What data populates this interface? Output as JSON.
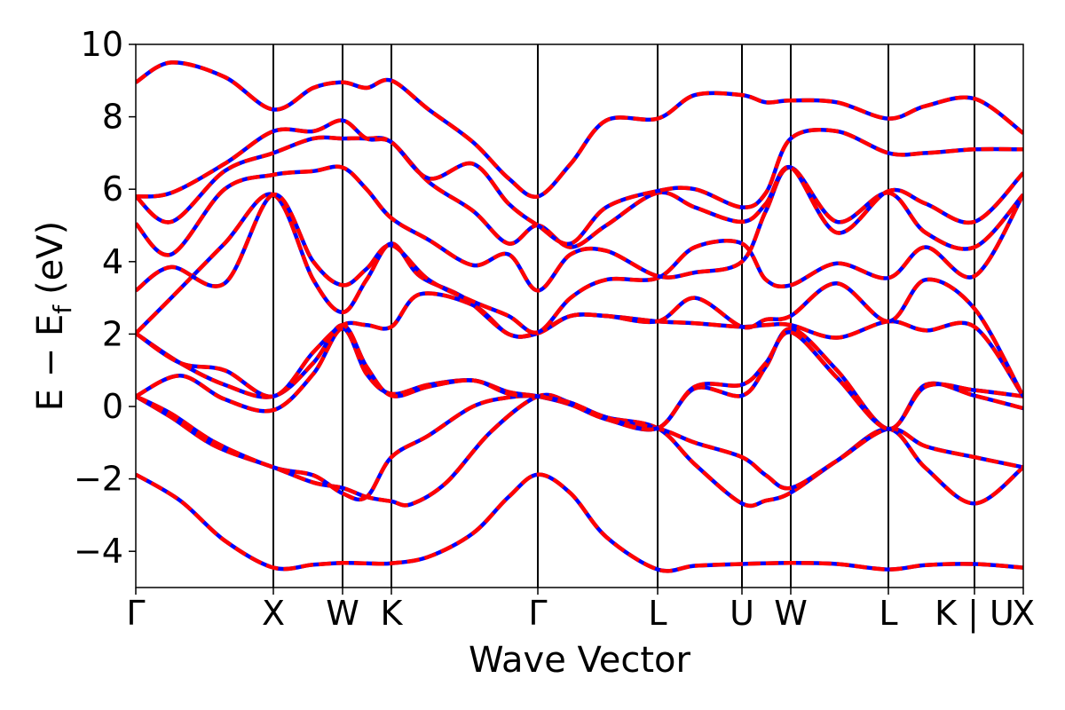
{
  "chart_data": {
    "type": "line",
    "title": "",
    "xlabel": "Wave Vector",
    "ylabel": "E − E_f (eV)",
    "ylabel_main": "E − E",
    "ylabel_sub": "f",
    "ylabel_unit": "(eV)",
    "ylim": [
      -5,
      10
    ],
    "yticks": [
      -4,
      -2,
      0,
      2,
      4,
      6,
      8,
      10
    ],
    "ytick_labels": [
      "−4",
      "−2",
      "0",
      "2",
      "4",
      "6",
      "8",
      "10"
    ],
    "xlim": [
      0,
      10
    ],
    "kpoints": [
      {
        "label": "Γ",
        "x": 0.0
      },
      {
        "label": "X",
        "x": 1.55
      },
      {
        "label": "W",
        "x": 2.33
      },
      {
        "label": "K",
        "x": 2.88
      },
      {
        "label": "Γ",
        "x": 4.53
      },
      {
        "label": "L",
        "x": 5.88
      },
      {
        "label": "U",
        "x": 6.83
      },
      {
        "label": "W",
        "x": 7.38
      },
      {
        "label": "L",
        "x": 8.48
      },
      {
        "label": "K | U",
        "x": 9.45
      },
      {
        "label": "X",
        "x": 10.0
      }
    ],
    "grid": false,
    "legend": "none",
    "series_style": [
      {
        "color": "#0000ff",
        "dash": "solid",
        "role": "reference band"
      },
      {
        "color": "#ff0000",
        "dash": "dashed",
        "role": "overlay band"
      }
    ],
    "bands": [
      {
        "x": [
          0,
          0.5,
          1.0,
          1.55,
          2.0,
          2.33,
          2.6,
          2.88,
          3.3,
          3.8,
          4.2,
          4.53,
          4.9,
          5.3,
          5.88,
          6.3,
          6.83,
          7.38,
          7.9,
          8.48,
          8.9,
          9.45,
          10.0
        ],
        "y": [
          -1.88,
          -2.6,
          -3.7,
          -4.45,
          -4.37,
          -4.32,
          -4.33,
          -4.33,
          -4.15,
          -3.5,
          -2.5,
          -1.88,
          -2.4,
          -3.6,
          -4.5,
          -4.4,
          -4.35,
          -4.32,
          -4.35,
          -4.5,
          -4.38,
          -4.35,
          -4.45
        ]
      },
      {
        "x": [
          0,
          0.4,
          0.9,
          1.55,
          2.0,
          2.33,
          2.6,
          2.88,
          3.1,
          3.5,
          4.0,
          4.53,
          4.9,
          5.3,
          5.88,
          6.3,
          6.83,
          7.1,
          7.38,
          7.9,
          8.48,
          8.9,
          9.45,
          10.0
        ],
        "y": [
          0.28,
          -0.3,
          -1.1,
          -1.68,
          -2.1,
          -2.25,
          -2.5,
          -2.62,
          -2.7,
          -2.1,
          -0.7,
          0.28,
          0.1,
          -0.3,
          -0.6,
          -1.6,
          -2.68,
          -2.6,
          -2.38,
          -1.5,
          -0.62,
          -1.7,
          -2.68,
          -1.68
        ]
      },
      {
        "x": [
          0,
          0.4,
          0.9,
          1.55,
          2.0,
          2.33,
          2.6,
          2.88,
          3.3,
          3.8,
          4.2,
          4.53,
          4.9,
          5.3,
          5.88,
          6.3,
          6.83,
          7.1,
          7.38,
          7.9,
          8.48,
          8.9,
          9.45,
          10.0
        ],
        "y": [
          0.28,
          -0.2,
          -1.0,
          -1.68,
          -1.9,
          -2.4,
          -2.5,
          -1.4,
          -0.8,
          0.0,
          0.25,
          0.28,
          0.1,
          -0.35,
          -0.6,
          -1.0,
          -1.4,
          -1.9,
          -2.25,
          -1.5,
          -0.62,
          -1.1,
          -1.4,
          -1.68
        ]
      },
      {
        "x": [
          0,
          0.5,
          1.0,
          1.55,
          2.0,
          2.33,
          2.6,
          2.88,
          3.3,
          3.8,
          4.2,
          4.53,
          4.9,
          5.3,
          5.88,
          6.3,
          6.83,
          7.1,
          7.38,
          7.9,
          8.48,
          8.9,
          9.45,
          10.0
        ],
        "y": [
          0.28,
          0.85,
          0.2,
          -0.1,
          0.9,
          2.15,
          0.9,
          0.35,
          0.6,
          0.72,
          0.4,
          0.28,
          0.05,
          -0.35,
          -0.6,
          0.5,
          0.3,
          1.1,
          2.15,
          1.0,
          -0.62,
          0.6,
          0.3,
          -0.05
        ]
      },
      {
        "x": [
          0,
          0.5,
          1.0,
          1.55,
          2.0,
          2.33,
          2.6,
          2.88,
          3.3,
          3.8,
          4.2,
          4.53,
          4.9,
          5.3,
          5.88,
          6.3,
          6.83,
          7.1,
          7.38,
          7.9,
          8.48,
          8.9,
          9.45,
          10.0
        ],
        "y": [
          2.02,
          1.2,
          0.6,
          0.28,
          1.2,
          2.25,
          1.1,
          0.3,
          0.55,
          0.72,
          0.35,
          0.28,
          0.1,
          -0.3,
          -0.6,
          0.55,
          0.6,
          1.2,
          2.05,
          0.8,
          -0.62,
          0.55,
          0.45,
          0.28
        ]
      },
      {
        "x": [
          0,
          0.5,
          1.0,
          1.55,
          2.0,
          2.33,
          2.6,
          2.88,
          3.2,
          3.8,
          4.2,
          4.53,
          4.9,
          5.3,
          5.88,
          6.3,
          6.83,
          7.1,
          7.38,
          7.9,
          8.48,
          8.9,
          9.45,
          10.0
        ],
        "y": [
          2.02,
          1.2,
          1.0,
          0.28,
          1.5,
          2.25,
          2.25,
          2.2,
          3.1,
          2.8,
          2.0,
          2.02,
          2.5,
          2.5,
          2.35,
          2.3,
          2.2,
          2.25,
          2.25,
          1.9,
          2.35,
          2.1,
          2.2,
          0.28
        ]
      },
      {
        "x": [
          0,
          0.4,
          1.0,
          1.55,
          2.0,
          2.33,
          2.6,
          2.88,
          3.2,
          3.7,
          4.2,
          4.53,
          4.9,
          5.3,
          5.88,
          6.3,
          6.83,
          7.1,
          7.38,
          7.9,
          8.48,
          8.9,
          9.45,
          10.0
        ],
        "y": [
          2.02,
          3.0,
          4.5,
          5.85,
          3.5,
          2.6,
          3.5,
          4.5,
          3.6,
          3.0,
          2.0,
          2.05,
          2.5,
          2.5,
          2.35,
          3.0,
          2.2,
          2.4,
          2.5,
          3.4,
          2.35,
          3.5,
          2.7,
          0.28
        ]
      },
      {
        "x": [
          0,
          0.4,
          1.0,
          1.55,
          2.0,
          2.33,
          2.6,
          2.88,
          3.3,
          3.8,
          4.2,
          4.53,
          4.9,
          5.3,
          5.88,
          6.3,
          6.83,
          7.1,
          7.38,
          7.9,
          8.48,
          8.9,
          9.45,
          10.0
        ],
        "y": [
          3.2,
          3.85,
          3.4,
          5.85,
          4.0,
          3.35,
          3.8,
          4.45,
          3.5,
          2.9,
          2.5,
          2.05,
          3.0,
          3.5,
          3.55,
          4.4,
          4.5,
          3.5,
          3.35,
          3.95,
          3.55,
          4.4,
          3.6,
          5.85
        ]
      },
      {
        "x": [
          0,
          0.4,
          1.0,
          1.55,
          2.0,
          2.33,
          2.6,
          2.88,
          3.3,
          3.8,
          4.2,
          4.53,
          4.9,
          5.3,
          5.88,
          6.3,
          6.83,
          7.1,
          7.38,
          7.9,
          8.48,
          8.9,
          9.45,
          10.0
        ],
        "y": [
          5.05,
          4.2,
          6.0,
          6.4,
          6.5,
          6.6,
          6.0,
          5.2,
          4.6,
          3.9,
          4.2,
          3.2,
          4.2,
          4.3,
          3.6,
          3.7,
          4.0,
          5.4,
          6.6,
          5.1,
          5.9,
          4.8,
          4.4,
          5.85
        ]
      },
      {
        "x": [
          0,
          0.4,
          1.0,
          1.55,
          2.0,
          2.33,
          2.6,
          2.88,
          3.3,
          3.8,
          4.2,
          4.53,
          4.9,
          5.3,
          5.88,
          6.3,
          6.83,
          7.1,
          7.38,
          7.9,
          8.48,
          8.9,
          9.45,
          10.0
        ],
        "y": [
          5.8,
          5.1,
          6.5,
          7.0,
          7.4,
          7.4,
          7.4,
          7.3,
          6.2,
          5.4,
          4.5,
          5.0,
          4.4,
          5.0,
          5.9,
          5.5,
          5.1,
          5.6,
          6.6,
          4.8,
          5.95,
          5.6,
          5.1,
          6.45
        ]
      },
      {
        "x": [
          0,
          0.4,
          1.0,
          1.55,
          2.0,
          2.33,
          2.6,
          2.88,
          3.3,
          3.8,
          4.2,
          4.53,
          4.9,
          5.3,
          5.88,
          6.3,
          6.83,
          7.1,
          7.38,
          7.9,
          8.48,
          8.9,
          9.45,
          10.0
        ],
        "y": [
          5.8,
          5.9,
          6.7,
          7.6,
          7.6,
          7.9,
          7.4,
          7.3,
          6.3,
          6.7,
          5.6,
          5.0,
          4.5,
          5.5,
          5.95,
          6.0,
          5.5,
          5.9,
          7.4,
          7.6,
          7.0,
          7.0,
          7.1,
          7.1
        ]
      },
      {
        "x": [
          0,
          0.4,
          1.0,
          1.55,
          2.0,
          2.33,
          2.6,
          2.88,
          3.3,
          3.8,
          4.2,
          4.53,
          4.9,
          5.3,
          5.88,
          6.3,
          6.83,
          7.1,
          7.38,
          7.9,
          8.48,
          8.9,
          9.45,
          10.0
        ],
        "y": [
          8.95,
          9.5,
          9.1,
          8.2,
          8.8,
          8.95,
          8.8,
          9.0,
          8.2,
          7.3,
          6.3,
          5.8,
          6.7,
          7.9,
          7.95,
          8.6,
          8.6,
          8.4,
          8.45,
          8.4,
          7.95,
          8.3,
          8.5,
          7.55
        ]
      }
    ]
  }
}
